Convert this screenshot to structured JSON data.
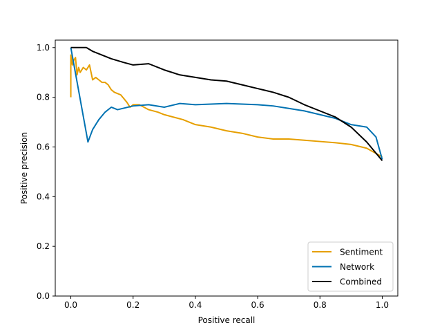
{
  "chart_data": {
    "type": "line",
    "title": "",
    "xlabel": "Positive recall",
    "ylabel": "Positive precision",
    "xlim": [
      -0.05,
      1.05
    ],
    "ylim": [
      0.0,
      1.03
    ],
    "xticks": [
      0.0,
      0.2,
      0.4,
      0.6,
      0.8,
      1.0
    ],
    "xtick_labels": [
      "0.0",
      "0.2",
      "0.4",
      "0.6",
      "0.8",
      "1.0"
    ],
    "yticks": [
      0.0,
      0.2,
      0.4,
      0.6,
      0.8,
      1.0
    ],
    "ytick_labels": [
      "0.0",
      "0.2",
      "0.4",
      "0.6",
      "0.8",
      "1.0"
    ],
    "grid": false,
    "legend_position": "lower-right",
    "series": [
      {
        "name": "Sentiment",
        "color": "#e69f00",
        "x": [
          0.0,
          0.0,
          0.005,
          0.01,
          0.015,
          0.02,
          0.025,
          0.03,
          0.04,
          0.05,
          0.06,
          0.07,
          0.08,
          0.09,
          0.1,
          0.11,
          0.12,
          0.13,
          0.14,
          0.16,
          0.18,
          0.19,
          0.2,
          0.22,
          0.25,
          0.28,
          0.3,
          0.33,
          0.36,
          0.4,
          0.45,
          0.5,
          0.55,
          0.6,
          0.65,
          0.7,
          0.75,
          0.8,
          0.85,
          0.9,
          0.95,
          1.0
        ],
        "y": [
          0.8,
          0.97,
          0.93,
          0.95,
          0.96,
          0.89,
          0.92,
          0.9,
          0.92,
          0.91,
          0.93,
          0.87,
          0.88,
          0.87,
          0.86,
          0.86,
          0.85,
          0.83,
          0.82,
          0.81,
          0.78,
          0.76,
          0.77,
          0.77,
          0.75,
          0.74,
          0.73,
          0.72,
          0.71,
          0.69,
          0.68,
          0.665,
          0.655,
          0.64,
          0.632,
          0.632,
          0.627,
          0.622,
          0.617,
          0.61,
          0.595,
          0.56
        ]
      },
      {
        "name": "Network",
        "color": "#0072b2",
        "x": [
          0.0,
          0.055,
          0.07,
          0.09,
          0.11,
          0.13,
          0.15,
          0.2,
          0.25,
          0.3,
          0.35,
          0.4,
          0.5,
          0.6,
          0.65,
          0.7,
          0.75,
          0.8,
          0.85,
          0.9,
          0.95,
          0.98,
          1.0
        ],
        "y": [
          1.0,
          0.62,
          0.67,
          0.71,
          0.74,
          0.76,
          0.75,
          0.765,
          0.77,
          0.76,
          0.775,
          0.77,
          0.775,
          0.77,
          0.765,
          0.755,
          0.745,
          0.73,
          0.715,
          0.69,
          0.68,
          0.64,
          0.55
        ]
      },
      {
        "name": "Combined",
        "color": "#000000",
        "x": [
          0.0,
          0.05,
          0.07,
          0.1,
          0.13,
          0.17,
          0.2,
          0.25,
          0.3,
          0.35,
          0.4,
          0.45,
          0.5,
          0.55,
          0.6,
          0.65,
          0.7,
          0.75,
          0.8,
          0.85,
          0.9,
          0.95,
          1.0
        ],
        "y": [
          1.0,
          1.0,
          0.985,
          0.97,
          0.955,
          0.94,
          0.93,
          0.935,
          0.91,
          0.89,
          0.88,
          0.87,
          0.865,
          0.85,
          0.835,
          0.82,
          0.8,
          0.77,
          0.745,
          0.72,
          0.68,
          0.62,
          0.545
        ]
      }
    ]
  }
}
